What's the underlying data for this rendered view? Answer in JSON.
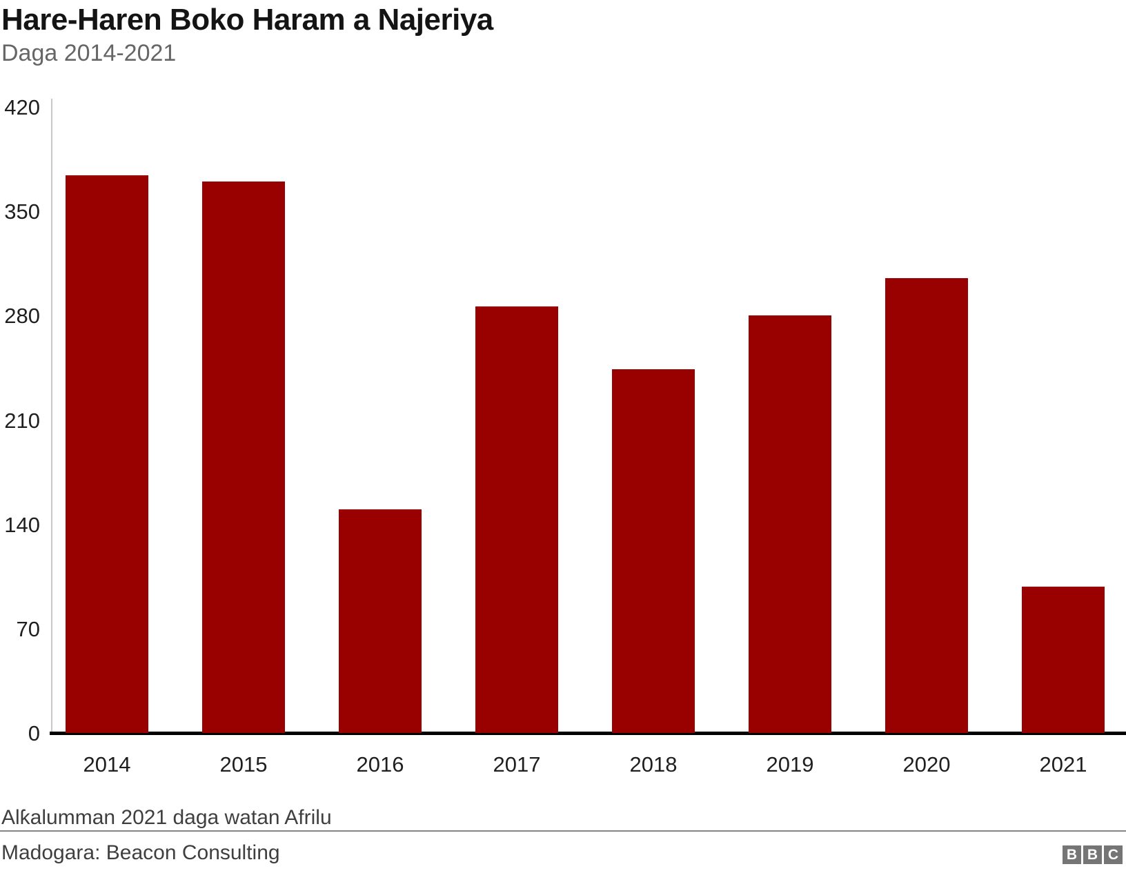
{
  "header": {
    "title": "Hare-Haren Boko Haram a Najeriya",
    "subtitle": "Daga 2014-2021"
  },
  "footer": {
    "footnote": "Alƙalumman 2021 daga watan Afrilu",
    "source": "Madogara: Beacon Consulting"
  },
  "logo": {
    "letters": [
      "B",
      "B",
      "C"
    ],
    "background": "#757575",
    "text_color": "#ffffff"
  },
  "colors": {
    "bar": "#990000",
    "title": "#141414",
    "subtitle": "#666666",
    "tick_labels": "#1f1f1f",
    "baseline": "#000000",
    "y_axis_line": "#c8c8c8",
    "footnote": "#3f3f3f",
    "divider": "#848484"
  },
  "chart_data": {
    "type": "bar",
    "title": "Hare-Haren Boko Haram a Najeriya",
    "subtitle": "Daga 2014-2021",
    "categories": [
      "2014",
      "2015",
      "2016",
      "2017",
      "2018",
      "2019",
      "2020",
      "2021"
    ],
    "values": [
      374,
      370,
      150,
      286,
      244,
      280,
      305,
      98
    ],
    "xlabel": "",
    "ylabel": "",
    "ylim": [
      0,
      420
    ],
    "yticks": [
      0,
      70,
      140,
      210,
      280,
      350,
      420
    ],
    "grid": false,
    "legend": false,
    "bar_color": "#990000",
    "footnote": "Alƙalumman 2021 daga watan Afrilu",
    "source": "Madogara: Beacon Consulting"
  }
}
